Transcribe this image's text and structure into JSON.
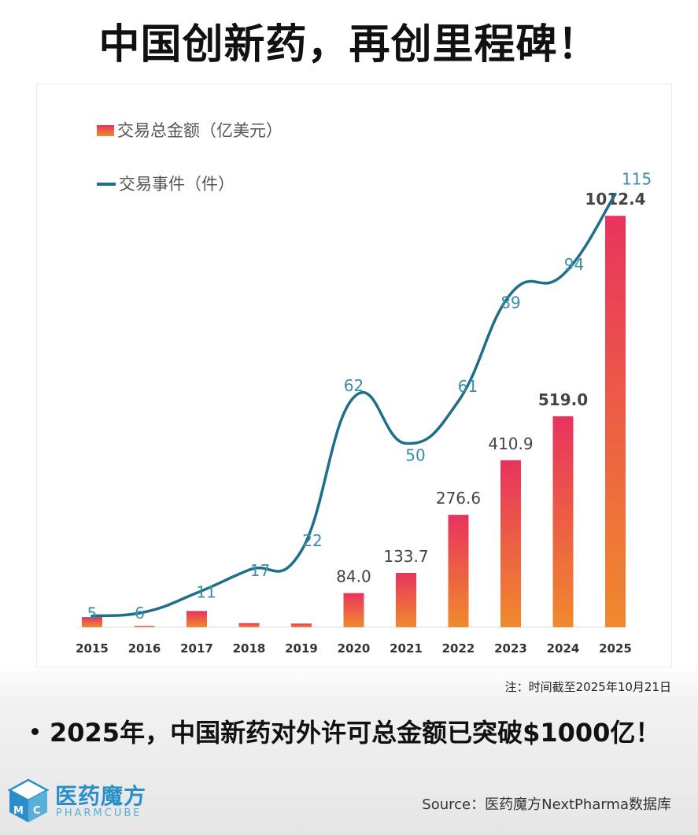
{
  "title": "中国创新药，再创里程碑！",
  "note": "注：时间截至2025年10月21日",
  "bullet": "2025年，中国新药对外许可总金额已突破$1000亿！",
  "logo": {
    "cn": "医药魔方",
    "en": "PHARMCUBE",
    "cube_letters": [
      "M",
      "C"
    ]
  },
  "source": "Source：医药魔方NextPharma数据库",
  "colors": {
    "bar_top": "#e8335e",
    "bar_bottom": "#f08a2c",
    "line": "#1f6e8a",
    "line_label": "#3c8ea8"
  },
  "chart_data": {
    "type": "bar",
    "title": "",
    "xlabel": "",
    "ylabel": "",
    "grid": false,
    "legend_position": "top-left",
    "categories": [
      "2015",
      "2016",
      "2017",
      "2018",
      "2019",
      "2020",
      "2021",
      "2022",
      "2023",
      "2024",
      "2025"
    ],
    "series": [
      {
        "name": "交易总金额（亿美元）",
        "type": "bar",
        "values": [
          25,
          3,
          40,
          10,
          9,
          84.0,
          133.7,
          276.6,
          410.9,
          519.0,
          1012.4
        ],
        "labels": [
          "",
          "",
          "",
          "",
          "",
          "84.0",
          "133.7",
          "276.6",
          "410.9",
          "519.0",
          "1012.4"
        ],
        "ylim": [
          0,
          1100
        ]
      },
      {
        "name": "交易事件（件）",
        "type": "line",
        "values": [
          5,
          6,
          11,
          17,
          22,
          62,
          50,
          61,
          89,
          94,
          115
        ],
        "labels": [
          "5",
          "6",
          "11",
          "17",
          "22",
          "62",
          "50",
          "61",
          "89",
          "94",
          "115"
        ],
        "ylim": [
          0,
          125
        ]
      }
    ]
  }
}
